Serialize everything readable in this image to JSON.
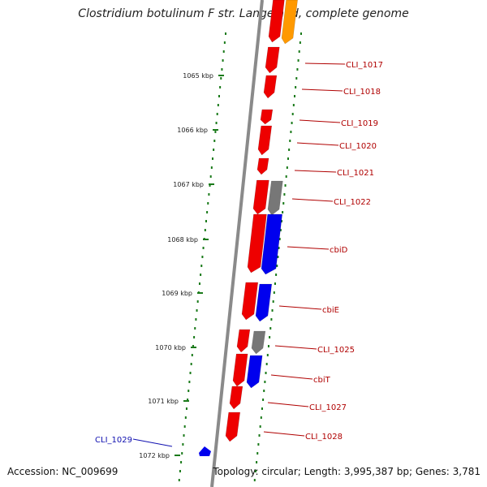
{
  "title": "Clostridium botulinum F str. Langeland, complete genome",
  "footer": {
    "accession": "Accession: NC_009699",
    "summary": "Topology: circular; Length: 3,995,387 bp; Genes: 3,781"
  },
  "colors": {
    "backbone": "#888888",
    "tick": "#1a7a1a",
    "forward_gene": "#ee0000",
    "reverse_gene": "#0000ee",
    "pseudo_gene": "#777777",
    "orange_gene": "#ff9900",
    "label_red": "#b00000",
    "label_blue": "#1010b0"
  },
  "ruler": [
    {
      "label": "1065 kbp"
    },
    {
      "label": "1066 kbp"
    },
    {
      "label": "1067 kbp"
    },
    {
      "label": "1068 kbp"
    },
    {
      "label": "1069 kbp"
    },
    {
      "label": "1070 kbp"
    },
    {
      "label": "1071 kbp"
    },
    {
      "label": "1072 kbp"
    }
  ],
  "gene_labels": [
    {
      "label": "CLI_1017"
    },
    {
      "label": "CLI_1018"
    },
    {
      "label": "CLI_1019"
    },
    {
      "label": "CLI_1020"
    },
    {
      "label": "CLI_1021"
    },
    {
      "label": "CLI_1022"
    },
    {
      "label": "cbiD"
    },
    {
      "label": "cbiE"
    },
    {
      "label": "CLI_1025"
    },
    {
      "label": "cbiT"
    },
    {
      "label": "CLI_1027"
    },
    {
      "label": "CLI_1028"
    },
    {
      "label": "CLI_1029"
    }
  ]
}
